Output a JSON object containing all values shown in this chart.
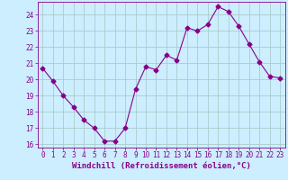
{
  "x": [
    0,
    1,
    2,
    3,
    4,
    5,
    6,
    7,
    8,
    9,
    10,
    11,
    12,
    13,
    14,
    15,
    16,
    17,
    18,
    19,
    20,
    21,
    22,
    23
  ],
  "y": [
    20.7,
    19.9,
    19.0,
    18.3,
    17.5,
    17.0,
    16.2,
    16.2,
    17.0,
    19.4,
    20.8,
    20.6,
    21.5,
    21.2,
    23.2,
    23.0,
    23.4,
    24.5,
    24.2,
    23.3,
    22.2,
    21.1,
    20.2,
    20.1
  ],
  "line_color": "#880088",
  "marker": "D",
  "marker_size": 2.5,
  "bg_color": "#cceeff",
  "grid_color": "#aacccc",
  "xlabel": "Windchill (Refroidissement éolien,°C)",
  "ylabel": "",
  "ylim": [
    15.8,
    24.8
  ],
  "xlim": [
    -0.5,
    23.5
  ],
  "yticks": [
    16,
    17,
    18,
    19,
    20,
    21,
    22,
    23,
    24
  ],
  "xticks": [
    0,
    1,
    2,
    3,
    4,
    5,
    6,
    7,
    8,
    9,
    10,
    11,
    12,
    13,
    14,
    15,
    16,
    17,
    18,
    19,
    20,
    21,
    22,
    23
  ],
  "tick_label_fontsize": 5.5,
  "xlabel_fontsize": 6.5,
  "axis_color": "#880088"
}
